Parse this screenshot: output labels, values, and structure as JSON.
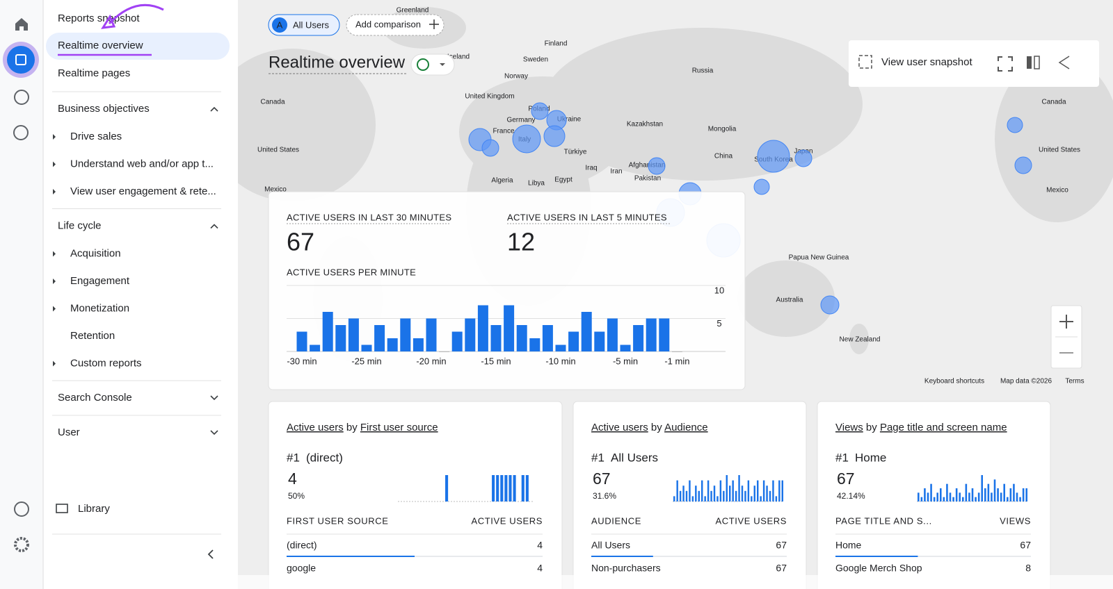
{
  "nav": {
    "top": [
      "Reports snapshot",
      "Realtime overview",
      "Realtime pages"
    ],
    "sections": [
      {
        "title": "Business objectives",
        "items": [
          "Drive sales",
          "Understand web and/or app t...",
          "View user engagement & rete..."
        ]
      },
      {
        "title": "Life cycle",
        "items": [
          "Acquisition",
          "Engagement",
          "Monetization",
          "Retention",
          "Custom reports"
        ]
      },
      {
        "title": "Search Console"
      },
      {
        "title": "User"
      }
    ],
    "library": "Library"
  },
  "toolbar": {
    "segment_badge": "A",
    "segment": "All Users",
    "add_comparison": "Add comparison",
    "page_title": "Realtime overview",
    "view_snapshot": "View user snapshot"
  },
  "map": {
    "labels": [
      "Greenland",
      "Finland",
      "Iceland",
      "Sweden",
      "Norway",
      "Russia",
      "United Kingdom",
      "Canada",
      "Poland",
      "Germany",
      "Ukraine",
      "France",
      "Italy",
      "Kazakhstan",
      "Mongolia",
      "United States",
      "Türkiye",
      "China",
      "South Korea",
      "Japan",
      "Iraq",
      "Iran",
      "Afghanistan",
      "Pakistan",
      "Algeria",
      "Libya",
      "Egypt",
      "Mexico",
      "Canada",
      "United States",
      "Mexico",
      "Papua New Guinea",
      "Australia",
      "New Zealand"
    ],
    "footer": [
      "Keyboard shortcuts",
      "Map data ©2026",
      "Terms"
    ]
  },
  "chart_data": {
    "type": "bar",
    "metrics": [
      {
        "label": "ACTIVE USERS IN LAST 30 MINUTES",
        "value": 67
      },
      {
        "label": "ACTIVE USERS IN LAST 5 MINUTES",
        "value": 12
      }
    ],
    "title": "ACTIVE USERS PER MINUTE",
    "categories": [
      "-30 min",
      null,
      null,
      null,
      null,
      "-25 min",
      null,
      null,
      null,
      null,
      "-20 min",
      null,
      null,
      null,
      null,
      "-15 min",
      null,
      null,
      null,
      null,
      "-10 min",
      null,
      null,
      null,
      null,
      "-5 min",
      null,
      null,
      null,
      "-1 min"
    ],
    "values": [
      3,
      1,
      6,
      4,
      5,
      1,
      4,
      2,
      5,
      2,
      5,
      0,
      3,
      5,
      7,
      4,
      7,
      4,
      2,
      4,
      1,
      3,
      6,
      3,
      5,
      1,
      4,
      5,
      5,
      0
    ],
    "color": "#1a73e8",
    "ylim": [
      0,
      10
    ],
    "yticks": [
      5,
      10
    ],
    "grid": true
  },
  "cards": [
    {
      "title": [
        "Active users",
        " by ",
        "First user source"
      ],
      "rank": "#1",
      "top_name": "(direct)",
      "top_value": 4,
      "share": 50,
      "share_label": "50%",
      "spark": [
        0,
        0,
        0,
        0,
        0,
        0,
        0,
        0,
        0,
        0,
        0,
        1,
        0,
        0,
        0,
        0,
        0,
        0,
        0,
        0,
        0,
        0,
        1,
        1,
        1,
        1,
        1,
        1,
        0,
        1,
        1,
        0
      ],
      "columns": [
        "FIRST USER SOURCE",
        "ACTIVE USERS"
      ],
      "rows": [
        [
          "(direct)",
          4
        ],
        [
          "google",
          4
        ]
      ]
    },
    {
      "title": [
        "Active users",
        " by ",
        "Audience"
      ],
      "rank": "#1",
      "top_name": "All Users",
      "top_value": 67,
      "share": 31.6,
      "share_label": "31.6%",
      "spark": [
        1,
        4,
        2,
        3,
        2,
        4,
        1,
        3,
        2,
        4,
        1,
        4,
        2,
        3,
        1,
        4,
        2,
        5,
        3,
        4,
        2,
        5,
        3,
        2,
        4,
        1,
        3,
        4,
        1,
        4,
        3,
        2,
        4,
        1,
        4,
        4
      ],
      "columns": [
        "AUDIENCE",
        "ACTIVE USERS"
      ],
      "rows": [
        [
          "All Users",
          67
        ],
        [
          "Non-purchasers",
          67
        ]
      ]
    },
    {
      "title": [
        "Views",
        " by ",
        "Page title and screen name"
      ],
      "rank": "#1",
      "top_name": "Home",
      "top_value": 67,
      "share": 42.14,
      "share_label": "42.14%",
      "spark": [
        2,
        1,
        3,
        2,
        4,
        1,
        2,
        3,
        1,
        4,
        2,
        1,
        3,
        2,
        1,
        4,
        2,
        3,
        1,
        2,
        6,
        3,
        4,
        2,
        5,
        3,
        2,
        4,
        1,
        3,
        4,
        2,
        1,
        3,
        3
      ],
      "columns": [
        "PAGE TITLE AND S...",
        "VIEWS"
      ],
      "rows": [
        [
          "Home",
          67
        ],
        [
          "Google Merch Shop",
          8
        ]
      ]
    }
  ]
}
